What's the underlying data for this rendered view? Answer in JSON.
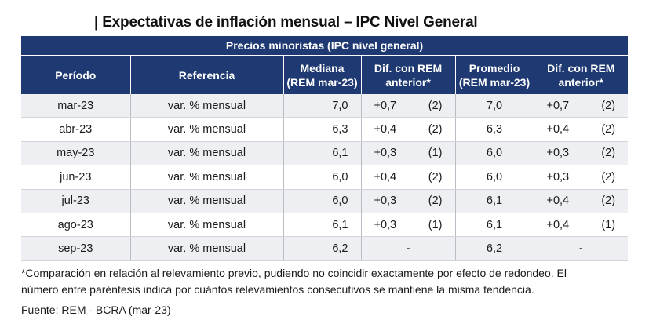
{
  "title": "| Expectativas de inflación mensual – IPC Nivel General",
  "table": {
    "super_header": "Precios minoristas (IPC nivel general)",
    "headers": {
      "periodo": "Período",
      "referencia": "Referencia",
      "mediana": [
        "Mediana",
        "(REM mar-23)"
      ],
      "dif1": [
        "Dif. con REM",
        "anterior*"
      ],
      "promedio": [
        "Promedio",
        "(REM mar-23)"
      ],
      "dif2": [
        "Dif. con REM",
        "anterior*"
      ]
    },
    "rows": [
      {
        "periodo": "mar-23",
        "referencia": "var. % mensual",
        "mediana": "7,0",
        "dif1": "+0,7",
        "dif1c": "(2)",
        "promedio": "7,0",
        "dif2": "+0,7",
        "dif2c": "(2)"
      },
      {
        "periodo": "abr-23",
        "referencia": "var. % mensual",
        "mediana": "6,3",
        "dif1": "+0,4",
        "dif1c": "(2)",
        "promedio": "6,3",
        "dif2": "+0,4",
        "dif2c": "(2)"
      },
      {
        "periodo": "may-23",
        "referencia": "var. % mensual",
        "mediana": "6,1",
        "dif1": "+0,3",
        "dif1c": "(1)",
        "promedio": "6,0",
        "dif2": "+0,3",
        "dif2c": "(2)"
      },
      {
        "periodo": "jun-23",
        "referencia": "var. % mensual",
        "mediana": "6,0",
        "dif1": "+0,4",
        "dif1c": "(2)",
        "promedio": "6,0",
        "dif2": "+0,3",
        "dif2c": "(2)"
      },
      {
        "periodo": "jul-23",
        "referencia": "var. % mensual",
        "mediana": "6,0",
        "dif1": "+0,3",
        "dif1c": "(2)",
        "promedio": "6,1",
        "dif2": "+0,4",
        "dif2c": "(2)"
      },
      {
        "periodo": "ago-23",
        "referencia": "var. % mensual",
        "mediana": "6,1",
        "dif1": "+0,3",
        "dif1c": "(1)",
        "promedio": "6,1",
        "dif2": "+0,4",
        "dif2c": "(1)"
      },
      {
        "periodo": "sep-23",
        "referencia": "var. % mensual",
        "mediana": "6,2",
        "dif1": "-",
        "dif1c": "",
        "promedio": "6,2",
        "dif2": "-",
        "dif2c": ""
      }
    ]
  },
  "footnote": {
    "line1": "*Comparación en relación al relevamiento previo, pudiendo no coincidir exactamente por efecto de redondeo. El",
    "line2": "número entre paréntesis indica por cuántos relevamientos consecutivos se mantiene la misma tendencia."
  },
  "source": "Fuente: REM - BCRA (mar-23)",
  "colors": {
    "header_bg": "#1f3a72",
    "row_alt": "#eeeff2"
  }
}
